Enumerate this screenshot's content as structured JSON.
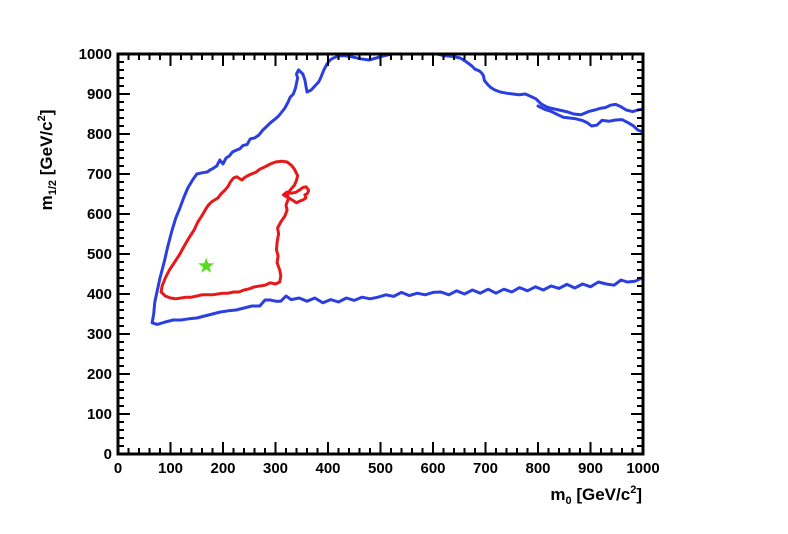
{
  "chart_data": {
    "type": "line",
    "title": "",
    "xlabel": {
      "main": "m",
      "sub": "0",
      "unit": " [GeV/c",
      "sup": "2",
      "close": "]"
    },
    "ylabel": {
      "main": "m",
      "sub": "1/2",
      "unit": " [GeV/c",
      "sup": "2",
      "close": "]"
    },
    "xlim": [
      0,
      1000
    ],
    "ylim": [
      0,
      1000
    ],
    "xticks": [
      0,
      100,
      200,
      300,
      400,
      500,
      600,
      700,
      800,
      900,
      1000
    ],
    "yticks": [
      0,
      100,
      200,
      300,
      400,
      500,
      600,
      700,
      800,
      900,
      1000
    ],
    "grid": false,
    "series": [
      {
        "color": "#2b3fe0",
        "points": [
          [
            998,
            440
          ],
          [
            985,
            432
          ],
          [
            970,
            430
          ],
          [
            958,
            435
          ],
          [
            945,
            422
          ],
          [
            930,
            425
          ],
          [
            915,
            430
          ],
          [
            900,
            418
          ],
          [
            885,
            425
          ],
          [
            870,
            415
          ],
          [
            855,
            424
          ],
          [
            840,
            414
          ],
          [
            825,
            420
          ],
          [
            810,
            410
          ],
          [
            795,
            418
          ],
          [
            780,
            408
          ],
          [
            765,
            416
          ],
          [
            750,
            405
          ],
          [
            735,
            412
          ],
          [
            720,
            402
          ],
          [
            705,
            412
          ],
          [
            690,
            402
          ],
          [
            675,
            410
          ],
          [
            660,
            400
          ],
          [
            645,
            408
          ],
          [
            630,
            398
          ],
          [
            615,
            405
          ],
          [
            600,
            404
          ],
          [
            585,
            398
          ],
          [
            570,
            402
          ],
          [
            555,
            396
          ],
          [
            540,
            404
          ],
          [
            525,
            394
          ],
          [
            510,
            398
          ],
          [
            495,
            392
          ],
          [
            480,
            388
          ],
          [
            465,
            392
          ],
          [
            450,
            384
          ],
          [
            435,
            390
          ],
          [
            420,
            380
          ],
          [
            405,
            386
          ],
          [
            390,
            378
          ],
          [
            375,
            390
          ],
          [
            360,
            382
          ],
          [
            345,
            390
          ],
          [
            330,
            386
          ],
          [
            320,
            395
          ],
          [
            310,
            382
          ],
          [
            300,
            382
          ],
          [
            290,
            385
          ],
          [
            280,
            385
          ],
          [
            270,
            370
          ],
          [
            255,
            370
          ],
          [
            240,
            365
          ],
          [
            225,
            360
          ],
          [
            210,
            358
          ],
          [
            195,
            355
          ],
          [
            180,
            350
          ],
          [
            165,
            345
          ],
          [
            150,
            340
          ],
          [
            135,
            338
          ],
          [
            120,
            335
          ],
          [
            105,
            335
          ],
          [
            90,
            330
          ],
          [
            75,
            324
          ],
          [
            65,
            328
          ],
          [
            68,
            350
          ],
          [
            70,
            380
          ],
          [
            75,
            410
          ],
          [
            80,
            440
          ],
          [
            88,
            480
          ],
          [
            95,
            520
          ],
          [
            103,
            560
          ],
          [
            110,
            590
          ],
          [
            118,
            615
          ],
          [
            125,
            640
          ],
          [
            133,
            665
          ],
          [
            142,
            685
          ],
          [
            150,
            700
          ],
          [
            160,
            703
          ],
          [
            170,
            705
          ],
          [
            175,
            710
          ],
          [
            180,
            713
          ],
          [
            188,
            720
          ],
          [
            194,
            735
          ],
          [
            200,
            725
          ],
          [
            206,
            740
          ],
          [
            212,
            745
          ],
          [
            218,
            755
          ],
          [
            226,
            760
          ],
          [
            232,
            763
          ],
          [
            238,
            771
          ],
          [
            246,
            774
          ],
          [
            252,
            788
          ],
          [
            260,
            790
          ],
          [
            268,
            797
          ],
          [
            276,
            810
          ],
          [
            284,
            820
          ],
          [
            292,
            830
          ],
          [
            300,
            838
          ],
          [
            306,
            845
          ],
          [
            312,
            855
          ],
          [
            318,
            865
          ],
          [
            324,
            880
          ],
          [
            328,
            892
          ],
          [
            334,
            900
          ],
          [
            338,
            915
          ],
          [
            342,
            940
          ],
          [
            340,
            950
          ],
          [
            344,
            960
          ],
          [
            352,
            950
          ],
          [
            356,
            935
          ],
          [
            360,
            905
          ],
          [
            368,
            910
          ],
          [
            375,
            920
          ],
          [
            382,
            930
          ],
          [
            386,
            940
          ],
          [
            392,
            960
          ],
          [
            398,
            975
          ],
          [
            404,
            985
          ],
          [
            410,
            990
          ],
          [
            420,
            995
          ],
          [
            430,
            996
          ],
          [
            445,
            993
          ],
          [
            462,
            988
          ],
          [
            478,
            985
          ],
          [
            492,
            990
          ],
          [
            505,
            995
          ],
          [
            515,
            998
          ],
          [
            522,
            1000
          ]
        ]
      },
      {
        "color": "#2b3fe0",
        "points": [
          [
            608,
            1000
          ],
          [
            620,
            996
          ],
          [
            636,
            994
          ],
          [
            652,
            990
          ],
          [
            664,
            980
          ],
          [
            674,
            970
          ],
          [
            680,
            962
          ],
          [
            688,
            958
          ],
          [
            693,
            952
          ],
          [
            696,
            946
          ],
          [
            698,
            934
          ],
          [
            704,
            924
          ],
          [
            710,
            916
          ],
          [
            718,
            910
          ],
          [
            728,
            905
          ],
          [
            740,
            902
          ],
          [
            752,
            900
          ],
          [
            764,
            898
          ],
          [
            776,
            900
          ],
          [
            786,
            894
          ],
          [
            796,
            888
          ],
          [
            806,
            875
          ],
          [
            816,
            868
          ],
          [
            826,
            864
          ],
          [
            840,
            860
          ],
          [
            854,
            856
          ],
          [
            868,
            850
          ],
          [
            882,
            848
          ],
          [
            896,
            856
          ],
          [
            908,
            860
          ],
          [
            918,
            864
          ],
          [
            928,
            866
          ],
          [
            938,
            872
          ],
          [
            948,
            874
          ],
          [
            958,
            868
          ],
          [
            968,
            860
          ],
          [
            980,
            856
          ],
          [
            990,
            860
          ],
          [
            998,
            862
          ],
          [
            1000,
            865
          ]
        ]
      },
      {
        "color": "#2b3fe0",
        "points": [
          [
            998,
            806
          ],
          [
            990,
            810
          ],
          [
            982,
            820
          ],
          [
            972,
            828
          ],
          [
            960,
            836
          ],
          [
            948,
            835
          ],
          [
            936,
            832
          ],
          [
            922,
            834
          ],
          [
            912,
            822
          ],
          [
            902,
            820
          ],
          [
            894,
            828
          ],
          [
            884,
            834
          ],
          [
            872,
            838
          ],
          [
            860,
            840
          ],
          [
            848,
            842
          ],
          [
            838,
            848
          ],
          [
            826,
            856
          ],
          [
            812,
            862
          ],
          [
            800,
            870
          ]
        ]
      },
      {
        "color": "#e51919",
        "points": [
          [
            82,
            405
          ],
          [
            90,
            395
          ],
          [
            100,
            390
          ],
          [
            110,
            388
          ],
          [
            120,
            390
          ],
          [
            130,
            392
          ],
          [
            140,
            392
          ],
          [
            150,
            395
          ],
          [
            160,
            398
          ],
          [
            170,
            398
          ],
          [
            180,
            398
          ],
          [
            190,
            400
          ],
          [
            200,
            402
          ],
          [
            210,
            402
          ],
          [
            220,
            405
          ],
          [
            230,
            405
          ],
          [
            240,
            410
          ],
          [
            250,
            413
          ],
          [
            260,
            418
          ],
          [
            270,
            420
          ],
          [
            280,
            422
          ],
          [
            290,
            428
          ],
          [
            300,
            425
          ],
          [
            308,
            430
          ],
          [
            310,
            445
          ],
          [
            308,
            460
          ],
          [
            303,
            478
          ],
          [
            305,
            495
          ],
          [
            302,
            510
          ],
          [
            303,
            530
          ],
          [
            306,
            550
          ],
          [
            304,
            565
          ],
          [
            310,
            580
          ],
          [
            318,
            595
          ],
          [
            322,
            610
          ],
          [
            320,
            622
          ],
          [
            325,
            640
          ],
          [
            315,
            648
          ],
          [
            322,
            655
          ],
          [
            330,
            652
          ],
          [
            338,
            654
          ],
          [
            346,
            660
          ],
          [
            352,
            666
          ],
          [
            358,
            668
          ],
          [
            362,
            662
          ],
          [
            363,
            658
          ],
          [
            360,
            650
          ],
          [
            356,
            648
          ],
          [
            358,
            640
          ],
          [
            352,
            635
          ],
          [
            346,
            632
          ],
          [
            340,
            628
          ],
          [
            334,
            633
          ],
          [
            326,
            640
          ],
          [
            322,
            645
          ],
          [
            328,
            660
          ],
          [
            336,
            672
          ],
          [
            340,
            684
          ],
          [
            342,
            696
          ],
          [
            336,
            712
          ],
          [
            330,
            722
          ],
          [
            322,
            730
          ],
          [
            312,
            732
          ],
          [
            300,
            730
          ],
          [
            290,
            725
          ],
          [
            280,
            718
          ],
          [
            270,
            712
          ],
          [
            262,
            704
          ],
          [
            254,
            700
          ],
          [
            246,
            695
          ],
          [
            240,
            690
          ],
          [
            236,
            685
          ],
          [
            232,
            688
          ],
          [
            226,
            693
          ],
          [
            220,
            690
          ],
          [
            214,
            680
          ],
          [
            210,
            670
          ],
          [
            204,
            660
          ],
          [
            196,
            650
          ],
          [
            190,
            640
          ],
          [
            184,
            635
          ],
          [
            178,
            630
          ],
          [
            172,
            622
          ],
          [
            166,
            610
          ],
          [
            160,
            596
          ],
          [
            152,
            580
          ],
          [
            145,
            560
          ],
          [
            135,
            540
          ],
          [
            126,
            520
          ],
          [
            118,
            500
          ],
          [
            108,
            480
          ],
          [
            98,
            460
          ],
          [
            90,
            440
          ],
          [
            84,
            420
          ],
          [
            82,
            405
          ]
        ]
      }
    ],
    "marker": {
      "symbol": "star",
      "color": "#55dd22",
      "x": 168,
      "y": 470
    }
  }
}
